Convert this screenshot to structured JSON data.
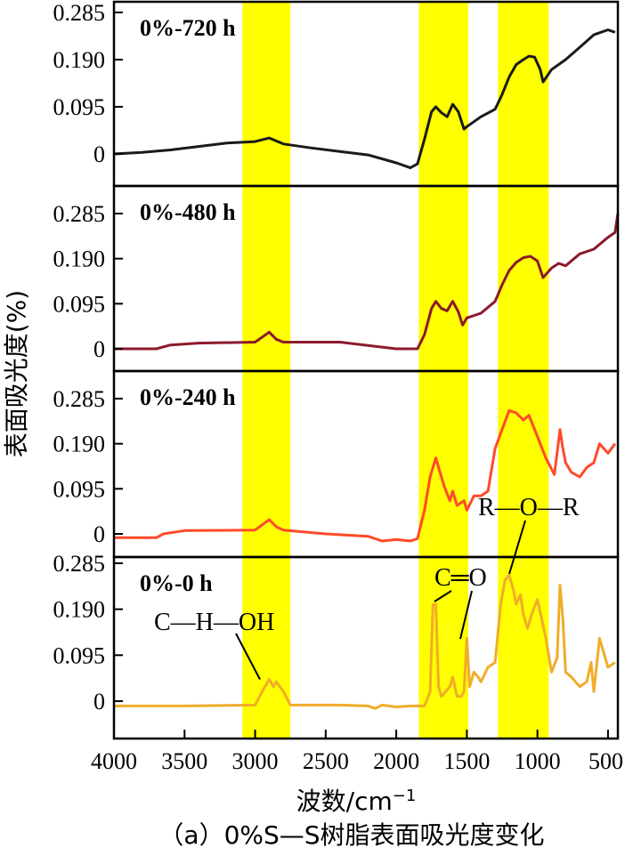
{
  "figure": {
    "caption": "（a）0%S—S树脂表面吸光度变化",
    "ylabel": "表面吸光度(%)",
    "xlabel_main": "波数/cm",
    "xlabel_sup": "−1",
    "x_ticks": [
      4000,
      3500,
      3000,
      2500,
      2000,
      1500,
      1000,
      500
    ],
    "y_ticks": [
      0,
      0.095,
      0.19,
      0.285
    ],
    "y_tick_labels": [
      "0",
      "0.095",
      "0.190",
      "0.285"
    ],
    "colors": {
      "highlight": "#ffff00",
      "panel_720": "#1a1a1a",
      "panel_480": "#8b1a2b",
      "panel_240": "#ff4a2a",
      "panel_0": "#f0ad2a",
      "axis": "#000000"
    }
  },
  "chart_data": {
    "type": "line",
    "x_axis_reversed": true,
    "xlim": [
      4000,
      430
    ],
    "ylim": [
      -0.075,
      0.3
    ],
    "highlight_bands": [
      [
        3090,
        2750
      ],
      [
        1840,
        1490
      ],
      [
        1280,
        920
      ]
    ],
    "annotations": [
      {
        "text": "C—H—OH",
        "panel": "0%-0 h",
        "target_x": 2900
      },
      {
        "text": "C═O",
        "panel": "0%-0 h",
        "target_x": 1720
      },
      {
        "text": "R—O—R",
        "panel": "0%-0 h",
        "target_x": 1150
      }
    ],
    "series": [
      {
        "name": "0%-720 h",
        "color": "#1a1a1a",
        "x": [
          4000,
          3800,
          3600,
          3400,
          3200,
          3000,
          2900,
          2800,
          2600,
          2400,
          2200,
          2000,
          1900,
          1850,
          1800,
          1750,
          1720,
          1680,
          1640,
          1600,
          1560,
          1520,
          1500,
          1400,
          1300,
          1250,
          1200,
          1150,
          1100,
          1060,
          1020,
          980,
          960,
          900,
          800,
          700,
          600,
          500,
          450
        ],
        "values": [
          0.0,
          0.003,
          0.008,
          0.015,
          0.022,
          0.025,
          0.032,
          0.02,
          0.012,
          0.005,
          -0.002,
          -0.018,
          -0.028,
          -0.02,
          0.03,
          0.085,
          0.095,
          0.083,
          0.075,
          0.1,
          0.085,
          0.05,
          0.055,
          0.075,
          0.09,
          0.12,
          0.155,
          0.18,
          0.19,
          0.197,
          0.195,
          0.17,
          0.145,
          0.17,
          0.19,
          0.215,
          0.24,
          0.25,
          0.245
        ]
      },
      {
        "name": "0%-480 h",
        "color": "#8b1a2b",
        "x": [
          4000,
          3700,
          3600,
          3400,
          3000,
          2900,
          2850,
          2800,
          2400,
          2000,
          1850,
          1800,
          1750,
          1720,
          1680,
          1640,
          1600,
          1560,
          1530,
          1500,
          1400,
          1300,
          1250,
          1200,
          1150,
          1100,
          1050,
          1000,
          960,
          900,
          850,
          800,
          700,
          600,
          500,
          450,
          430
        ],
        "values": [
          0.0,
          0.0,
          0.008,
          0.012,
          0.014,
          0.035,
          0.02,
          0.014,
          0.014,
          0.0,
          0.0,
          0.03,
          0.085,
          0.1,
          0.085,
          0.08,
          0.1,
          0.078,
          0.05,
          0.065,
          0.075,
          0.1,
          0.135,
          0.165,
          0.182,
          0.192,
          0.195,
          0.185,
          0.15,
          0.17,
          0.18,
          0.175,
          0.2,
          0.21,
          0.235,
          0.245,
          0.285
        ]
      },
      {
        "name": "0%-240 h",
        "color": "#ff4a2a",
        "x": [
          4000,
          3700,
          3650,
          3500,
          3000,
          2900,
          2850,
          2800,
          2500,
          2200,
          2100,
          2000,
          1900,
          1850,
          1800,
          1760,
          1720,
          1700,
          1660,
          1620,
          1600,
          1570,
          1520,
          1500,
          1450,
          1400,
          1350,
          1300,
          1250,
          1200,
          1150,
          1100,
          1060,
          1020,
          980,
          940,
          880,
          840,
          820,
          800,
          760,
          700,
          650,
          600,
          560,
          500,
          450
        ],
        "values": [
          -0.008,
          -0.008,
          0.0,
          0.007,
          0.008,
          0.03,
          0.015,
          0.008,
          0.0,
          -0.005,
          -0.015,
          -0.012,
          -0.015,
          -0.01,
          0.05,
          0.12,
          0.16,
          0.14,
          0.1,
          0.07,
          0.09,
          0.06,
          0.07,
          0.05,
          0.08,
          0.08,
          0.09,
          0.18,
          0.22,
          0.26,
          0.255,
          0.24,
          0.25,
          0.22,
          0.19,
          0.16,
          0.125,
          0.22,
          0.18,
          0.15,
          0.13,
          0.12,
          0.14,
          0.15,
          0.19,
          0.17,
          0.19
        ]
      },
      {
        "name": "0%-0 h",
        "color": "#f0ad2a",
        "x": [
          4000,
          3500,
          3000,
          2950,
          2900,
          2870,
          2850,
          2800,
          2750,
          2400,
          2200,
          2150,
          2100,
          2000,
          1900,
          1800,
          1760,
          1740,
          1720,
          1700,
          1680,
          1650,
          1620,
          1600,
          1570,
          1540,
          1520,
          1500,
          1480,
          1450,
          1420,
          1400,
          1350,
          1300,
          1260,
          1230,
          1200,
          1170,
          1150,
          1120,
          1100,
          1070,
          1040,
          1000,
          970,
          940,
          900,
          860,
          840,
          820,
          800,
          760,
          700,
          650,
          620,
          600,
          560,
          500,
          450
        ],
        "values": [
          -0.01,
          -0.01,
          -0.008,
          0.02,
          0.045,
          0.03,
          0.04,
          0.02,
          -0.008,
          -0.008,
          -0.01,
          -0.015,
          -0.008,
          -0.012,
          -0.01,
          -0.01,
          0.02,
          0.2,
          0.2,
          0.03,
          0.01,
          0.02,
          0.03,
          0.05,
          0.01,
          0.01,
          0.02,
          0.13,
          0.03,
          0.06,
          0.05,
          0.04,
          0.07,
          0.08,
          0.2,
          0.25,
          0.26,
          0.23,
          0.2,
          0.22,
          0.18,
          0.15,
          0.18,
          0.21,
          0.17,
          0.13,
          0.06,
          0.09,
          0.24,
          0.17,
          0.06,
          0.05,
          0.03,
          0.04,
          0.08,
          0.02,
          0.13,
          0.07,
          0.08
        ]
      }
    ]
  }
}
